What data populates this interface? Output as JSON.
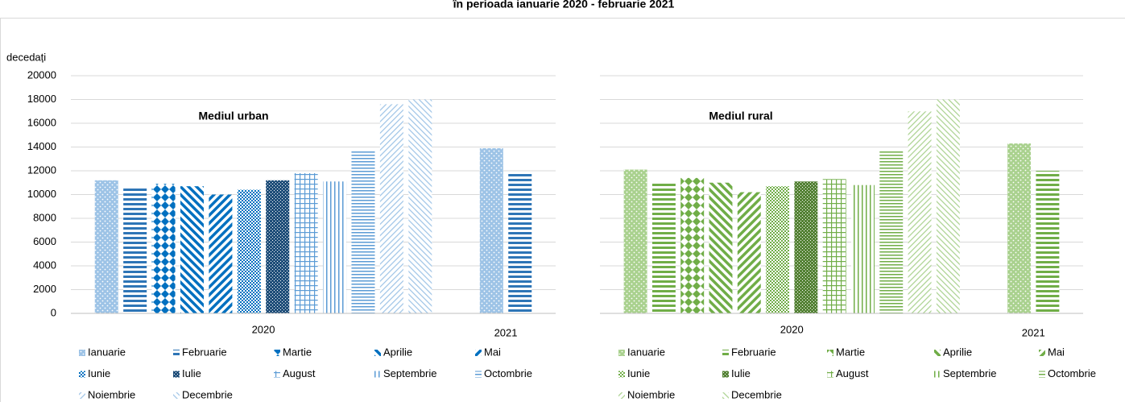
{
  "title": "în perioada ianuarie 2020 - februarie 2021",
  "chart_data": [
    {
      "type": "bar",
      "title": "Mediul urban",
      "ylabel": "decedați",
      "ytick_labels": true,
      "categories": [
        "2020",
        "2021"
      ],
      "ylim": [
        0,
        20000
      ],
      "yticks": [
        0,
        2000,
        4000,
        6000,
        8000,
        10000,
        12000,
        14000,
        16000,
        18000,
        20000
      ],
      "grid": true,
      "series": [
        {
          "name": "Ianuarie",
          "color": "#9dc3e6",
          "pattern": "dots",
          "values": [
            11200,
            13900
          ]
        },
        {
          "name": "Februarie",
          "color": "#2e75b6",
          "pattern": "hlines",
          "values": [
            10600,
            11800
          ]
        },
        {
          "name": "Martie",
          "color": "#0070c0",
          "pattern": "diamonds",
          "values": [
            10900,
            null
          ]
        },
        {
          "name": "Aprilie",
          "color": "#0070c0",
          "pattern": "diag-down",
          "values": [
            10700,
            null
          ]
        },
        {
          "name": "Mai",
          "color": "#0070c0",
          "pattern": "diag-up",
          "values": [
            10000,
            null
          ]
        },
        {
          "name": "Iunie",
          "color": "#0070c0",
          "pattern": "checker",
          "values": [
            10400,
            null
          ]
        },
        {
          "name": "Iulie",
          "color": "#1f4e79",
          "pattern": "dark-checker",
          "values": [
            11200,
            null
          ]
        },
        {
          "name": "August",
          "color": "#5b9bd5",
          "pattern": "grid",
          "values": [
            11800,
            null
          ]
        },
        {
          "name": "Septembrie",
          "color": "#5b9bd5",
          "pattern": "vlines",
          "values": [
            11100,
            null
          ]
        },
        {
          "name": "Octombrie",
          "color": "#5b9bd5",
          "pattern": "thin-hlines",
          "values": [
            13700,
            null
          ]
        },
        {
          "name": "Noiembrie",
          "color": "#9dc3e6",
          "pattern": "light-up",
          "values": [
            17600,
            null
          ]
        },
        {
          "name": "Decembrie",
          "color": "#9dc3e6",
          "pattern": "light-down",
          "values": [
            18000,
            null
          ]
        }
      ]
    },
    {
      "type": "bar",
      "title": "Mediul rural",
      "ytick_labels": false,
      "categories": [
        "2020",
        "2021"
      ],
      "ylim": [
        0,
        20000
      ],
      "yticks": [
        0,
        2000,
        4000,
        6000,
        8000,
        10000,
        12000,
        14000,
        16000,
        18000,
        20000
      ],
      "grid": true,
      "series": [
        {
          "name": "Ianuarie",
          "color": "#a9d18e",
          "pattern": "dots",
          "values": [
            12100,
            14300
          ]
        },
        {
          "name": "Februarie",
          "color": "#70ad47",
          "pattern": "hlines",
          "values": [
            11000,
            12000
          ]
        },
        {
          "name": "Martie",
          "color": "#70ad47",
          "pattern": "diamonds",
          "values": [
            11400,
            null
          ]
        },
        {
          "name": "Aprilie",
          "color": "#70ad47",
          "pattern": "diag-down",
          "values": [
            11000,
            null
          ]
        },
        {
          "name": "Mai",
          "color": "#70ad47",
          "pattern": "diag-up",
          "values": [
            10200,
            null
          ]
        },
        {
          "name": "Iunie",
          "color": "#70ad47",
          "pattern": "checker",
          "values": [
            10700,
            null
          ]
        },
        {
          "name": "Iulie",
          "color": "#548235",
          "pattern": "dark-checker",
          "values": [
            11100,
            null
          ]
        },
        {
          "name": "August",
          "color": "#70ad47",
          "pattern": "grid",
          "values": [
            11300,
            null
          ]
        },
        {
          "name": "Septembrie",
          "color": "#70ad47",
          "pattern": "vlines",
          "values": [
            10800,
            null
          ]
        },
        {
          "name": "Octombrie",
          "color": "#70ad47",
          "pattern": "thin-hlines",
          "values": [
            13700,
            null
          ]
        },
        {
          "name": "Noiembrie",
          "color": "#a9d18e",
          "pattern": "light-up",
          "values": [
            17000,
            null
          ]
        },
        {
          "name": "Decembrie",
          "color": "#a9d18e",
          "pattern": "light-down",
          "values": [
            18000,
            null
          ]
        }
      ]
    }
  ]
}
